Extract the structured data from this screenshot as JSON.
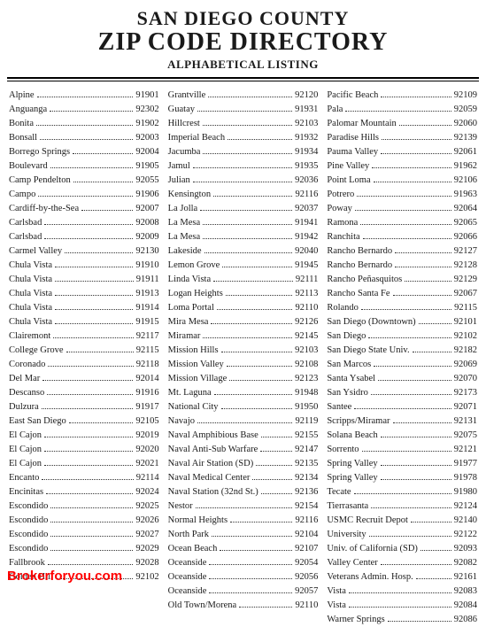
{
  "header": {
    "line1": "SAN DIEGO COUNTY",
    "line2": "ZIP CODE DIRECTORY",
    "subtitle": "ALPHABETICAL LISTING"
  },
  "branding": "Brokerforyou.com",
  "columns": [
    [
      {
        "place": "Alpine",
        "zip": "91901"
      },
      {
        "place": "Anguanga",
        "zip": "92302"
      },
      {
        "place": "Bonita",
        "zip": "91902"
      },
      {
        "place": "Bonsall",
        "zip": "92003"
      },
      {
        "place": "Borrego Springs",
        "zip": "92004"
      },
      {
        "place": "Boulevard",
        "zip": "91905"
      },
      {
        "place": "Camp Pendelton",
        "zip": "92055"
      },
      {
        "place": "Campo",
        "zip": "91906"
      },
      {
        "place": "Cardiff-by-the-Sea",
        "zip": "92007"
      },
      {
        "place": "Carlsbad",
        "zip": "92008"
      },
      {
        "place": "Carlsbad",
        "zip": "92009"
      },
      {
        "place": "Carmel Valley",
        "zip": "92130"
      },
      {
        "place": "Chula Vista",
        "zip": "91910"
      },
      {
        "place": "Chula Vista",
        "zip": "91911"
      },
      {
        "place": "Chula Vista",
        "zip": "91913"
      },
      {
        "place": "Chula Vista",
        "zip": "91914"
      },
      {
        "place": "Chula Vista",
        "zip": "91915"
      },
      {
        "place": "Clairemont",
        "zip": "92117"
      },
      {
        "place": "College Grove",
        "zip": "92115"
      },
      {
        "place": "Coronado",
        "zip": "92118"
      },
      {
        "place": "Del Mar",
        "zip": "92014"
      },
      {
        "place": "Descanso",
        "zip": "91916"
      },
      {
        "place": "Dulzura",
        "zip": "91917"
      },
      {
        "place": "East San Diego",
        "zip": "92105"
      },
      {
        "place": "El Cajon",
        "zip": "92019"
      },
      {
        "place": "El Cajon",
        "zip": "92020"
      },
      {
        "place": "El Cajon",
        "zip": "92021"
      },
      {
        "place": "Encanto",
        "zip": "92114"
      },
      {
        "place": "Encinitas",
        "zip": "92024"
      },
      {
        "place": "Escondido",
        "zip": "92025"
      },
      {
        "place": "Escondido",
        "zip": "92026"
      },
      {
        "place": "Escondido",
        "zip": "92027"
      },
      {
        "place": "Escondido",
        "zip": "92029"
      },
      {
        "place": "Fallbrook",
        "zip": "92028"
      },
      {
        "place": "Golden Hill",
        "zip": "92102"
      }
    ],
    [
      {
        "place": "Grantville",
        "zip": "92120"
      },
      {
        "place": "Guatay",
        "zip": "91931"
      },
      {
        "place": "Hillcrest",
        "zip": "92103"
      },
      {
        "place": "Imperial Beach",
        "zip": "91932"
      },
      {
        "place": "Jacumba",
        "zip": "91934"
      },
      {
        "place": "Jamul",
        "zip": "91935"
      },
      {
        "place": "Julian",
        "zip": "92036"
      },
      {
        "place": "Kensington",
        "zip": "92116"
      },
      {
        "place": "La Jolla",
        "zip": "92037"
      },
      {
        "place": "La Mesa",
        "zip": "91941"
      },
      {
        "place": "La Mesa",
        "zip": "91942"
      },
      {
        "place": "Lakeside",
        "zip": "92040"
      },
      {
        "place": "Lemon Grove",
        "zip": "91945"
      },
      {
        "place": "Linda Vista",
        "zip": "92111"
      },
      {
        "place": "Logan Heights",
        "zip": "92113"
      },
      {
        "place": "Loma Portal",
        "zip": "92110"
      },
      {
        "place": "Mira Mesa",
        "zip": "92126"
      },
      {
        "place": "Miramar",
        "zip": "92145"
      },
      {
        "place": "Mission Hills",
        "zip": "92103"
      },
      {
        "place": "Mission Valley",
        "zip": "92108"
      },
      {
        "place": "Mission Village",
        "zip": "92123"
      },
      {
        "place": "Mt. Laguna",
        "zip": "91948"
      },
      {
        "place": "National City",
        "zip": "91950"
      },
      {
        "place": "Navajo",
        "zip": "92119"
      },
      {
        "place": "Naval Amphibious Base",
        "zip": "92155"
      },
      {
        "place": "Naval Anti-Sub Warfare",
        "zip": "92147"
      },
      {
        "place": "Naval Air Station (SD)",
        "zip": "92135"
      },
      {
        "place": "Naval Medical Center",
        "zip": "92134"
      },
      {
        "place": "Naval Station (32nd St.)",
        "zip": "92136"
      },
      {
        "place": "Nestor",
        "zip": "92154"
      },
      {
        "place": "Normal Heights",
        "zip": "92116"
      },
      {
        "place": "North Park",
        "zip": "92104"
      },
      {
        "place": "Ocean Beach",
        "zip": "92107"
      },
      {
        "place": "Oceanside",
        "zip": "92054"
      },
      {
        "place": "Oceanside",
        "zip": "92056"
      },
      {
        "place": "Oceanside",
        "zip": "92057"
      },
      {
        "place": "Old Town/Morena",
        "zip": "92110"
      }
    ],
    [
      {
        "place": "Pacific Beach",
        "zip": "92109"
      },
      {
        "place": "Pala",
        "zip": "92059"
      },
      {
        "place": "Palomar Mountain",
        "zip": "92060"
      },
      {
        "place": "Paradise Hills",
        "zip": "92139"
      },
      {
        "place": "Pauma Valley",
        "zip": "92061"
      },
      {
        "place": "Pine Valley",
        "zip": "91962"
      },
      {
        "place": "Point Loma",
        "zip": "92106"
      },
      {
        "place": "Potrero",
        "zip": "91963"
      },
      {
        "place": "Poway",
        "zip": "92064"
      },
      {
        "place": "Ramona",
        "zip": "92065"
      },
      {
        "place": "Ranchita",
        "zip": "92066"
      },
      {
        "place": "Rancho Bernardo",
        "zip": "92127"
      },
      {
        "place": "Rancho Bernardo",
        "zip": "92128"
      },
      {
        "place": "Rancho Peñasquitos",
        "zip": "92129"
      },
      {
        "place": "Rancho Santa Fe",
        "zip": "92067"
      },
      {
        "place": "Rolando",
        "zip": "92115"
      },
      {
        "place": "San Diego (Downtown)",
        "zip": "92101"
      },
      {
        "place": "San Diego",
        "zip": "92102"
      },
      {
        "place": "San Diego State Univ.",
        "zip": "92182"
      },
      {
        "place": "San Marcos",
        "zip": "92069"
      },
      {
        "place": "Santa Ysabel",
        "zip": "92070"
      },
      {
        "place": "San Ysidro",
        "zip": "92173"
      },
      {
        "place": "Santee",
        "zip": "92071"
      },
      {
        "place": "Scripps/Miramar",
        "zip": "92131"
      },
      {
        "place": "Solana Beach",
        "zip": "92075"
      },
      {
        "place": "Sorrento",
        "zip": "92121"
      },
      {
        "place": "Spring Valley",
        "zip": "91977"
      },
      {
        "place": "Spring Valley",
        "zip": "91978"
      },
      {
        "place": "Tecate",
        "zip": "91980"
      },
      {
        "place": "Tierrasanta",
        "zip": "92124"
      },
      {
        "place": "USMC Recruit Depot",
        "zip": "92140"
      },
      {
        "place": "University",
        "zip": "92122"
      },
      {
        "place": "Univ. of California (SD)",
        "zip": "92093"
      },
      {
        "place": "Valley Center",
        "zip": "92082"
      },
      {
        "place": "Veterans Admin. Hosp.",
        "zip": "92161"
      },
      {
        "place": "Vista",
        "zip": "92083"
      },
      {
        "place": "Vista",
        "zip": "92084"
      },
      {
        "place": "Warner Springs",
        "zip": "92086"
      }
    ]
  ]
}
